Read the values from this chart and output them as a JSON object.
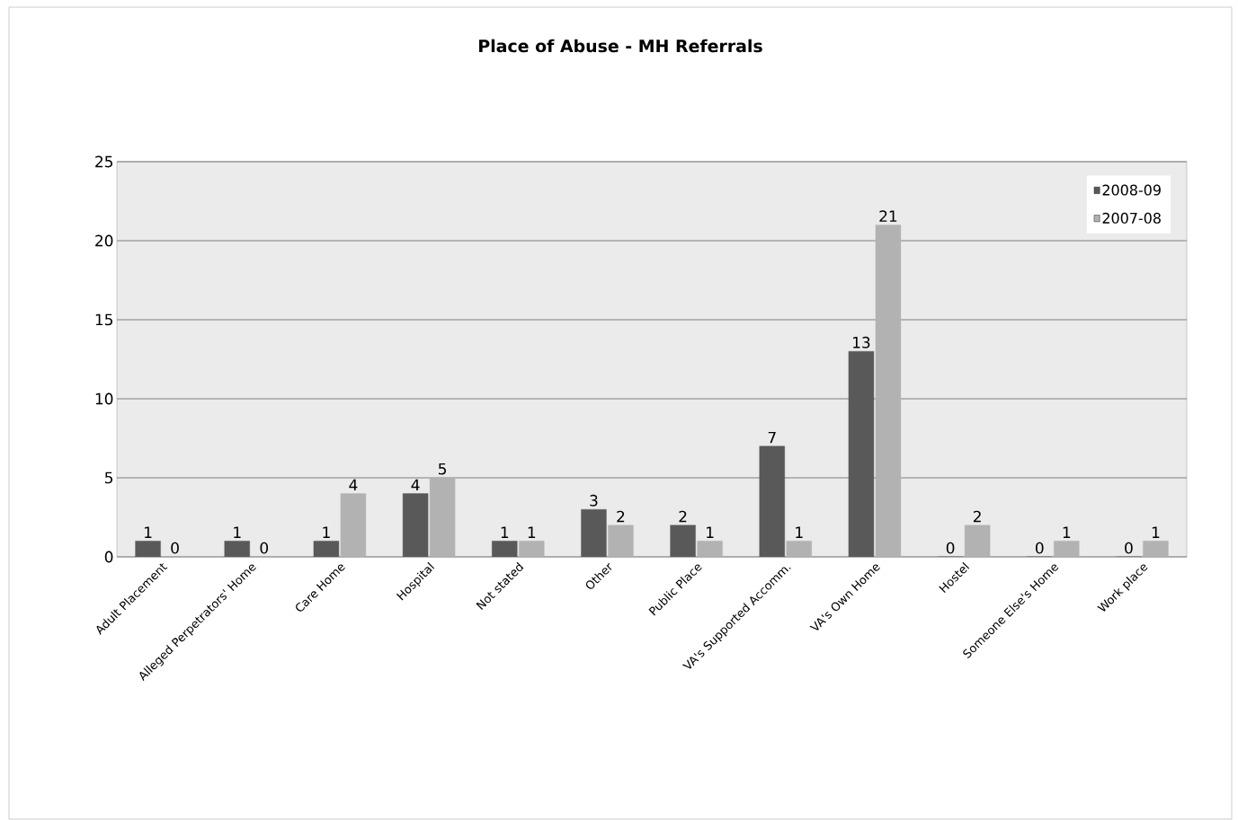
{
  "chart_data": {
    "type": "bar",
    "title": "Place of Abuse - MH Referrals",
    "categories": [
      "Adult Placement",
      "Alleged Perpetrators' Home",
      "Care Home",
      "Hospital",
      "Not stated",
      "Other",
      "Public Place",
      "VA's Supported Accomm.",
      "VA's Own Home",
      "Hostel",
      "Someone Else's Home",
      "Work place"
    ],
    "series": [
      {
        "name": "2008-09",
        "color": "#595959",
        "values": [
          1,
          1,
          1,
          4,
          1,
          3,
          2,
          7,
          13,
          0,
          0,
          0
        ]
      },
      {
        "name": "2007-08",
        "color": "#b2b2b2",
        "values": [
          0,
          0,
          4,
          5,
          1,
          2,
          1,
          1,
          21,
          2,
          1,
          1
        ]
      }
    ],
    "ylim": [
      0,
      25
    ],
    "yticks": [
      0,
      5,
      10,
      15,
      20,
      25
    ],
    "grid": "y",
    "legend": "top right",
    "data_labels": true
  }
}
